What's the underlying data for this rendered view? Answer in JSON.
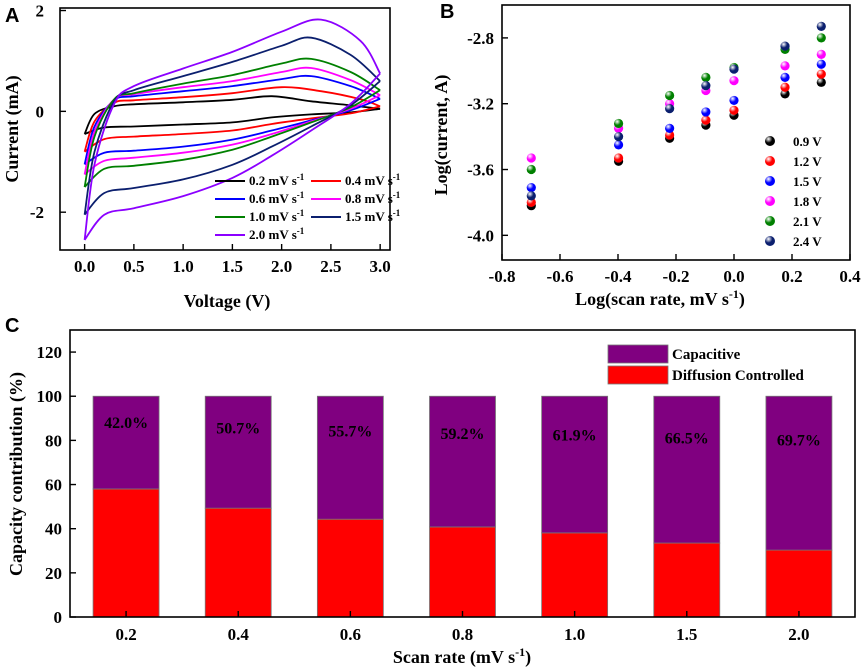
{
  "chart_data": [
    {
      "panel": "A",
      "type": "line",
      "xlabel": "Voltage (V)",
      "ylabel": "Current (mA)",
      "xlim": [
        -0.25,
        3.1
      ],
      "ylim": [
        -2.75,
        2.05
      ],
      "xticks": [
        "0.0",
        "0.5",
        "1.0",
        "1.5",
        "2.0",
        "2.5",
        "3.0"
      ],
      "xtick_values": [
        0,
        0.5,
        1.0,
        1.5,
        2.0,
        2.5,
        3.0
      ],
      "yticks": [
        "-2",
        "0",
        "2"
      ],
      "ytick_values": [
        -2,
        0,
        2
      ],
      "legend_position": "bottom-right",
      "series": [
        {
          "name": "0.2 mV s-1",
          "label": "0.2 mV s",
          "sup": "-1",
          "color": "#000000",
          "anodic": [
            [
              0,
              -0.45
            ],
            [
              0.1,
              -0.05
            ],
            [
              0.3,
              0.1
            ],
            [
              0.5,
              0.14
            ],
            [
              1.0,
              0.18
            ],
            [
              1.5,
              0.23
            ],
            [
              1.9,
              0.3
            ],
            [
              2.3,
              0.2
            ],
            [
              2.7,
              0.12
            ],
            [
              3.0,
              0.05
            ]
          ],
          "cathodic": [
            [
              3.0,
              0.05
            ],
            [
              2.7,
              -0.02
            ],
            [
              2.3,
              -0.06
            ],
            [
              1.9,
              -0.12
            ],
            [
              1.5,
              -0.22
            ],
            [
              1.0,
              -0.26
            ],
            [
              0.5,
              -0.3
            ],
            [
              0.2,
              -0.32
            ],
            [
              0,
              -0.45
            ]
          ]
        },
        {
          "name": "0.4 mV s-1",
          "label": "0.4 mV s",
          "sup": "-1",
          "color": "#ff0000",
          "anodic": [
            [
              0,
              -0.8
            ],
            [
              0.1,
              -0.2
            ],
            [
              0.3,
              0.17
            ],
            [
              0.5,
              0.22
            ],
            [
              1.0,
              0.28
            ],
            [
              1.5,
              0.36
            ],
            [
              2.0,
              0.48
            ],
            [
              2.4,
              0.4
            ],
            [
              2.8,
              0.24
            ],
            [
              3.0,
              0.1
            ]
          ],
          "cathodic": [
            [
              3.0,
              0.1
            ],
            [
              2.7,
              -0.04
            ],
            [
              2.3,
              -0.14
            ],
            [
              1.9,
              -0.25
            ],
            [
              1.5,
              -0.38
            ],
            [
              1.0,
              -0.45
            ],
            [
              0.5,
              -0.5
            ],
            [
              0.2,
              -0.55
            ],
            [
              0,
              -0.8
            ]
          ]
        },
        {
          "name": "0.6 mV s-1",
          "label": "0.6 mV s",
          "sup": "-1",
          "color": "#0000ff",
          "anodic": [
            [
              0,
              -1.05
            ],
            [
              0.1,
              -0.3
            ],
            [
              0.3,
              0.22
            ],
            [
              0.5,
              0.3
            ],
            [
              1.0,
              0.4
            ],
            [
              1.5,
              0.5
            ],
            [
              2.0,
              0.64
            ],
            [
              2.3,
              0.7
            ],
            [
              2.7,
              0.5
            ],
            [
              3.0,
              0.25
            ]
          ],
          "cathodic": [
            [
              3.0,
              0.25
            ],
            [
              2.7,
              0.02
            ],
            [
              2.3,
              -0.18
            ],
            [
              1.9,
              -0.38
            ],
            [
              1.5,
              -0.56
            ],
            [
              1.0,
              -0.7
            ],
            [
              0.5,
              -0.78
            ],
            [
              0.2,
              -0.82
            ],
            [
              0,
              -1.05
            ]
          ]
        },
        {
          "name": "0.8 mV s-1",
          "label": "0.8 mV s",
          "sup": "-1",
          "color": "#ff00ff",
          "anodic": [
            [
              0,
              -1.25
            ],
            [
              0.1,
              -0.4
            ],
            [
              0.3,
              0.24
            ],
            [
              0.5,
              0.34
            ],
            [
              1.0,
              0.48
            ],
            [
              1.5,
              0.6
            ],
            [
              2.0,
              0.78
            ],
            [
              2.3,
              0.86
            ],
            [
              2.7,
              0.62
            ],
            [
              3.0,
              0.32
            ]
          ],
          "cathodic": [
            [
              3.0,
              0.32
            ],
            [
              2.7,
              0.05
            ],
            [
              2.3,
              -0.2
            ],
            [
              1.9,
              -0.45
            ],
            [
              1.5,
              -0.66
            ],
            [
              1.0,
              -0.82
            ],
            [
              0.5,
              -0.92
            ],
            [
              0.2,
              -0.98
            ],
            [
              0,
              -1.25
            ]
          ]
        },
        {
          "name": "1.0 mV s-1",
          "label": "1.0 mV s",
          "sup": "-1",
          "color": "#008000",
          "anodic": [
            [
              0,
              -1.5
            ],
            [
              0.1,
              -0.5
            ],
            [
              0.3,
              0.24
            ],
            [
              0.5,
              0.36
            ],
            [
              1.0,
              0.55
            ],
            [
              1.5,
              0.72
            ],
            [
              2.0,
              0.95
            ],
            [
              2.3,
              1.04
            ],
            [
              2.7,
              0.78
            ],
            [
              3.0,
              0.42
            ]
          ],
          "cathodic": [
            [
              3.0,
              0.42
            ],
            [
              2.7,
              0.08
            ],
            [
              2.3,
              -0.22
            ],
            [
              1.9,
              -0.5
            ],
            [
              1.5,
              -0.76
            ],
            [
              1.0,
              -0.96
            ],
            [
              0.5,
              -1.08
            ],
            [
              0.2,
              -1.14
            ],
            [
              0,
              -1.5
            ]
          ]
        },
        {
          "name": "1.5 mV s-1",
          "label": "1.5 mV s",
          "sup": "-1",
          "color": "#0b1f6e",
          "anodic": [
            [
              0,
              -2.05
            ],
            [
              0.1,
              -0.8
            ],
            [
              0.3,
              0.2
            ],
            [
              0.5,
              0.42
            ],
            [
              1.0,
              0.7
            ],
            [
              1.5,
              0.98
            ],
            [
              2.0,
              1.3
            ],
            [
              2.3,
              1.46
            ],
            [
              2.7,
              1.12
            ],
            [
              3.0,
              0.6
            ]
          ],
          "cathodic": [
            [
              3.0,
              0.6
            ],
            [
              2.7,
              0.12
            ],
            [
              2.3,
              -0.3
            ],
            [
              1.9,
              -0.7
            ],
            [
              1.5,
              -1.06
            ],
            [
              1.0,
              -1.35
            ],
            [
              0.5,
              -1.52
            ],
            [
              0.2,
              -1.62
            ],
            [
              0,
              -2.05
            ]
          ]
        },
        {
          "name": "2.0 mV s-1",
          "label": "2.0 mV s",
          "sup": "-1",
          "color": "#8b00ff",
          "anodic": [
            [
              0,
              -2.55
            ],
            [
              0.1,
              -1.05
            ],
            [
              0.3,
              0.15
            ],
            [
              0.5,
              0.5
            ],
            [
              1.0,
              0.85
            ],
            [
              1.5,
              1.18
            ],
            [
              2.0,
              1.58
            ],
            [
              2.4,
              1.82
            ],
            [
              2.8,
              1.4
            ],
            [
              3.0,
              0.75
            ]
          ],
          "cathodic": [
            [
              3.0,
              0.75
            ],
            [
              2.7,
              0.15
            ],
            [
              2.3,
              -0.38
            ],
            [
              1.9,
              -0.88
            ],
            [
              1.5,
              -1.32
            ],
            [
              1.0,
              -1.68
            ],
            [
              0.5,
              -1.92
            ],
            [
              0.2,
              -2.05
            ],
            [
              0,
              -2.55
            ]
          ]
        }
      ]
    },
    {
      "panel": "B",
      "type": "scatter",
      "xlabel": "Log(scan rate, mV s",
      "xlabel_sup": "-1",
      "xlabel_tail": ")",
      "ylabel": "Log(current, A)",
      "xlim": [
        -0.8,
        0.4
      ],
      "ylim": [
        -4.15,
        -2.6
      ],
      "xticks": [
        "-0.8",
        "-0.6",
        "-0.4",
        "-0.2",
        "0.0",
        "0.2",
        "0.4"
      ],
      "xtick_values": [
        -0.8,
        -0.6,
        -0.4,
        -0.2,
        0.0,
        0.2,
        0.4
      ],
      "yticks": [
        "-2.8",
        "-3.2",
        "-3.6",
        "-4.0"
      ],
      "ytick_values": [
        -2.8,
        -3.2,
        -3.6,
        -4.0
      ],
      "x": [
        -0.699,
        -0.398,
        -0.222,
        -0.097,
        0.0,
        0.176,
        0.301
      ],
      "legend_position": "right",
      "series": [
        {
          "name": "0.9 V",
          "color": "#000000",
          "values": [
            -3.82,
            -3.55,
            -3.41,
            -3.33,
            -3.27,
            -3.14,
            -3.07
          ]
        },
        {
          "name": "1.2 V",
          "color": "#ff0000",
          "values": [
            -3.8,
            -3.53,
            -3.39,
            -3.3,
            -3.24,
            -3.1,
            -3.02
          ]
        },
        {
          "name": "1.5 V",
          "color": "#0000ff",
          "values": [
            -3.71,
            -3.45,
            -3.35,
            -3.25,
            -3.18,
            -3.04,
            -2.96
          ]
        },
        {
          "name": "1.8 V",
          "color": "#ff00ff",
          "values": [
            -3.53,
            -3.35,
            -3.2,
            -3.12,
            -3.06,
            -2.97,
            -2.9
          ]
        },
        {
          "name": "2.1 V",
          "color": "#008000",
          "values": [
            -3.6,
            -3.32,
            -3.15,
            -3.04,
            -2.98,
            -2.87,
            -2.8
          ]
        },
        {
          "name": "2.4 V",
          "color": "#0b1f6e",
          "values": [
            -3.76,
            -3.4,
            -3.23,
            -3.09,
            -2.99,
            -2.85,
            -2.73
          ]
        }
      ]
    },
    {
      "panel": "C",
      "type": "bar",
      "stacked": true,
      "xlabel": "Scan rate (mV s",
      "xlabel_sup": "-1",
      "xlabel_tail": ")",
      "ylabel": "Capacity contribution (%)",
      "ylim": [
        0,
        130
      ],
      "yticks": [
        "0",
        "20",
        "40",
        "60",
        "80",
        "100",
        "120"
      ],
      "ytick_values": [
        0,
        20,
        40,
        60,
        80,
        100,
        120
      ],
      "categories": [
        "0.2",
        "0.4",
        "0.6",
        "0.8",
        "1.0",
        "1.5",
        "2.0"
      ],
      "legend_position": "top-right",
      "series": [
        {
          "name": "Diffusion Controlled",
          "color": "#ff0000",
          "values": [
            58.0,
            49.3,
            44.3,
            40.8,
            38.1,
            33.5,
            30.3
          ]
        },
        {
          "name": "Capacitive",
          "color": "#800080",
          "values": [
            42.0,
            50.7,
            55.7,
            59.2,
            61.9,
            66.5,
            69.7
          ]
        }
      ],
      "bar_labels": [
        "42.0%",
        "50.7%",
        "55.7%",
        "59.2%",
        "61.9%",
        "66.5%",
        "69.7%"
      ]
    }
  ],
  "panel_letters": {
    "a": "A",
    "b": "B",
    "c": "C"
  }
}
